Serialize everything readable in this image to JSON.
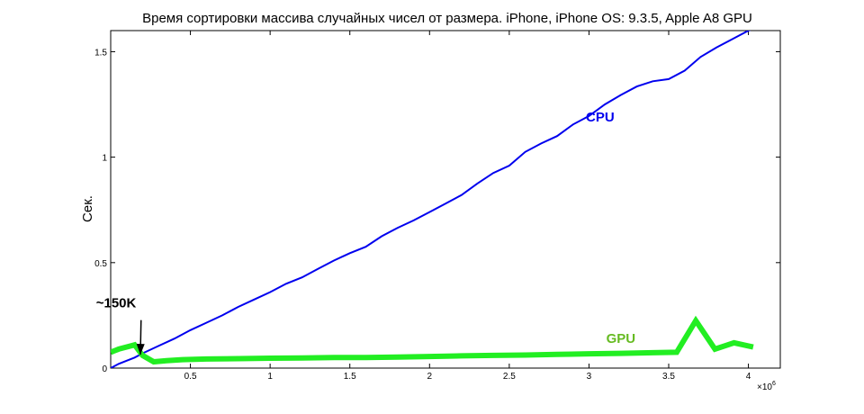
{
  "chart_data": {
    "type": "line",
    "title": "Время сортировки массива случайных чисел от размера. iPhone, iPhone OS: 9.3.5, Apple A8 GPU",
    "xlabel": "",
    "ylabel": "Сек.",
    "x_exponent_label": "×10",
    "x_exponent_power": "6",
    "xlim": [
      0,
      4.2
    ],
    "ylim": [
      0,
      1.6
    ],
    "x_scale": 1000000,
    "x_ticks": [
      0.5,
      1,
      1.5,
      2,
      2.5,
      3,
      3.5,
      4
    ],
    "x_tick_labels": [
      "0.5",
      "1",
      "1.5",
      "2",
      "2.5",
      "3",
      "3.5",
      "4"
    ],
    "y_ticks": [
      0,
      0.5,
      1,
      1.5
    ],
    "y_tick_labels": [
      "0",
      "0.5",
      "1",
      "1.5"
    ],
    "grid": false,
    "series": [
      {
        "name": "CPU",
        "color": "#0000ee",
        "x": [
          0,
          0.05,
          0.1,
          0.15,
          0.2,
          0.3,
          0.4,
          0.5,
          0.6,
          0.7,
          0.8,
          0.9,
          1.0,
          1.1,
          1.2,
          1.3,
          1.4,
          1.5,
          1.6,
          1.7,
          1.8,
          1.9,
          2.0,
          2.1,
          2.2,
          2.3,
          2.4,
          2.5,
          2.6,
          2.7,
          2.8,
          2.9,
          3.0,
          3.1,
          3.2,
          3.3,
          3.4,
          3.5,
          3.6,
          3.7,
          3.8,
          3.9,
          4.0,
          4.07
        ],
        "values": [
          0.0,
          0.02,
          0.035,
          0.05,
          0.07,
          0.105,
          0.14,
          0.18,
          0.215,
          0.25,
          0.29,
          0.325,
          0.36,
          0.4,
          0.43,
          0.47,
          0.51,
          0.545,
          0.575,
          0.625,
          0.665,
          0.7,
          0.74,
          0.78,
          0.82,
          0.875,
          0.925,
          0.96,
          1.025,
          1.065,
          1.1,
          1.155,
          1.195,
          1.25,
          1.295,
          1.335,
          1.36,
          1.37,
          1.41,
          1.475,
          1.52,
          1.56,
          1.6,
          1.62
        ]
      },
      {
        "name": "GPU",
        "color": "#22ee22",
        "x": [
          0,
          0.05,
          0.15,
          0.2,
          0.27,
          0.35,
          0.45,
          0.6,
          0.8,
          1.0,
          1.2,
          1.4,
          1.6,
          1.8,
          2.0,
          2.2,
          2.4,
          2.6,
          2.8,
          3.0,
          3.2,
          3.4,
          3.55,
          3.67,
          3.79,
          3.91,
          4.03
        ],
        "values": [
          0.075,
          0.09,
          0.11,
          0.06,
          0.03,
          0.035,
          0.04,
          0.043,
          0.045,
          0.047,
          0.048,
          0.05,
          0.05,
          0.052,
          0.055,
          0.058,
          0.06,
          0.062,
          0.065,
          0.068,
          0.07,
          0.073,
          0.075,
          0.225,
          0.09,
          0.12,
          0.1
        ]
      }
    ],
    "annotations": [
      {
        "text": "~150K",
        "x": 0.23,
        "y": 0.3,
        "arrow_to_x": 0.22,
        "arrow_to_y": 0.055,
        "color": "#000000"
      }
    ],
    "series_labels": [
      {
        "text": "CPU",
        "x": 3.07,
        "y": 1.17,
        "color": "#0000ee"
      },
      {
        "text": "GPU",
        "x": 3.2,
        "y": 0.12,
        "color": "#66bb22"
      }
    ]
  }
}
